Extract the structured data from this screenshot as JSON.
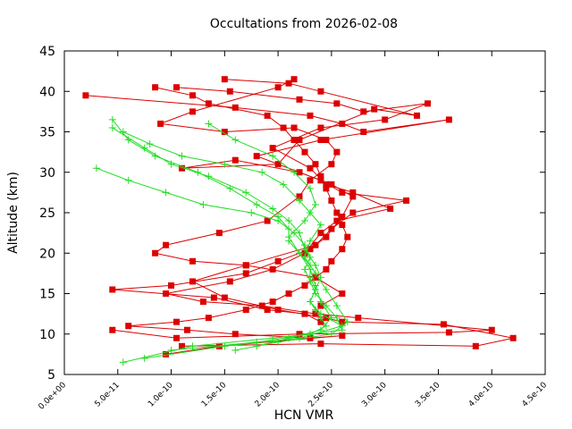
{
  "chart_data": {
    "type": "line",
    "title": "Occultations from 2026-02-08",
    "xlabel": "HCN VMR",
    "ylabel": "Altitude (km)",
    "xlim": [
      0,
      4.5e-10
    ],
    "ylim": [
      5,
      45
    ],
    "xticks": [
      0,
      5e-11,
      1e-10,
      1.5e-10,
      2e-10,
      2.5e-10,
      3e-10,
      3.5e-10,
      4e-10,
      4.5e-10
    ],
    "xtick_labels": [
      "0.0e+00",
      "5.0e-11",
      "1.0e-10",
      "1.5e-10",
      "2.0e-10",
      "2.5e-10",
      "3.0e-10",
      "3.5e-10",
      "4.0e-10",
      "4.5e-10"
    ],
    "yticks": [
      5,
      10,
      15,
      20,
      25,
      30,
      35,
      40,
      45
    ],
    "ytick_labels": [
      "5",
      "10",
      "15",
      "20",
      "25",
      "30",
      "35",
      "40",
      "45"
    ],
    "grid": false,
    "legend": "none",
    "colors": {
      "red": "#dd0000",
      "green": "#22dd22",
      "axis": "#000000"
    },
    "series": [
      {
        "name": "red-1",
        "color": "#dd0000",
        "marker": "square",
        "x": [
          8.5e-11,
          1.2e-10,
          1.35e-10,
          1.9e-10,
          2.05e-10,
          2.15e-10,
          2.25e-10,
          2.35e-10,
          2.4e-10,
          2.45e-10,
          2.5e-10,
          2.55e-10,
          2.6e-10,
          2.65e-10,
          2.6e-10,
          2.5e-10,
          2.45e-10,
          2.35e-10,
          2.25e-10,
          2.1e-10,
          1.95e-10,
          1.7e-10,
          1.35e-10,
          1.05e-10,
          6e-11,
          1.15e-10,
          1.6e-10,
          2.3e-10,
          2.6e-10,
          1.45e-10,
          9.5e-11
        ],
        "y": [
          40.5,
          39.5,
          38.5,
          37,
          35.5,
          34,
          32.5,
          31,
          29.5,
          28,
          26.5,
          25,
          23.5,
          22,
          20.5,
          19,
          18,
          17,
          16,
          15,
          14,
          13,
          12,
          11.5,
          11,
          10.5,
          10,
          9.5,
          9.8,
          8.5,
          7.5
        ]
      },
      {
        "name": "red-2",
        "color": "#dd0000",
        "marker": "square",
        "x": [
          2e-11,
          1.6e-10,
          2.3e-10,
          2.6e-10,
          2.8e-10,
          3.6e-10,
          2.4e-10,
          1.8e-10,
          2.4e-10,
          2.6e-10,
          3.2e-10,
          2.7e-10,
          2.5e-10,
          2.35e-10,
          1.7e-10,
          1.2e-10,
          1.5e-10,
          2e-10,
          2.45e-10,
          2.6e-10,
          3.55e-10,
          4.2e-10,
          3.85e-10,
          2.4e-10,
          1.1e-10
        ],
        "y": [
          39.5,
          38,
          37,
          36,
          35,
          36.5,
          34,
          32,
          29,
          27.5,
          26.5,
          25,
          23,
          21,
          18.5,
          16.5,
          14.5,
          13,
          12,
          11.5,
          11.2,
          9.5,
          8.5,
          8.8,
          8.5
        ]
      },
      {
        "name": "red-3",
        "color": "#dd0000",
        "marker": "square",
        "x": [
          1.05e-10,
          1.55e-10,
          2.2e-10,
          2.55e-10,
          2.8e-10,
          3.4e-10,
          3e-10,
          2.4e-10,
          1.95e-10,
          2.3e-10,
          2.45e-10,
          2.7e-10,
          3.05e-10,
          2.55e-10,
          2.4e-10,
          2.25e-10,
          1.95e-10,
          1.55e-10,
          9.5e-11,
          1.3e-10,
          1.85e-10,
          2.35e-10,
          2.75e-10,
          4e-10,
          3.6e-10,
          2.2e-10,
          1.05e-10,
          4.5e-11
        ],
        "y": [
          40.5,
          40,
          39,
          38.5,
          37.5,
          38.5,
          36.5,
          35.5,
          33,
          30.5,
          28.5,
          27.5,
          25.5,
          24,
          22.5,
          20,
          18,
          16.5,
          15,
          14,
          13.5,
          12.5,
          12,
          10.5,
          10.2,
          10,
          9.5,
          10.5
        ]
      },
      {
        "name": "red-4",
        "color": "#dd0000",
        "marker": "square",
        "x": [
          1.5e-10,
          2.1e-10,
          2.4e-10,
          3.3e-10,
          2.9e-10,
          2.2e-10,
          2e-10,
          1.1e-10,
          1.6e-10,
          2.2e-10,
          2.5e-10,
          2.7e-10,
          2.6e-10,
          2.45e-10,
          2.3e-10,
          2e-10,
          1.7e-10,
          1e-10,
          4.5e-11,
          1.4e-10,
          1.9e-10,
          2.25e-10,
          2.4e-10
        ],
        "y": [
          41.5,
          41,
          40,
          37,
          37.8,
          34,
          31,
          30.5,
          31.5,
          30,
          28.5,
          27,
          24.5,
          22,
          20.5,
          19,
          17.5,
          16,
          15.5,
          14.5,
          13,
          12.5,
          11.5
        ]
      },
      {
        "name": "red-5",
        "color": "#dd0000",
        "marker": "square",
        "x": [
          2.15e-10,
          2e-10,
          1.2e-10,
          9e-11,
          1.5e-10,
          2.15e-10,
          2.45e-10,
          2.55e-10,
          2.5e-10,
          2.3e-10,
          2.2e-10,
          1.9e-10,
          1.45e-10,
          9.5e-11,
          8.5e-11,
          1.2e-10,
          1.7e-10,
          2.35e-10,
          2.6e-10,
          2.4e-10
        ],
        "y": [
          41.5,
          40.5,
          37.5,
          36,
          35,
          35.5,
          34,
          32.5,
          31,
          29,
          27,
          24,
          22.5,
          21,
          20,
          19,
          18.5,
          17,
          15,
          13.5
        ]
      },
      {
        "name": "green-1",
        "color": "#22dd22",
        "marker": "plus",
        "x": [
          4.5e-11,
          6e-11,
          8.5e-11,
          1.25e-10,
          1.55e-10,
          1.8e-10,
          2e-10,
          2.1e-10,
          2.1e-10,
          2.2e-10,
          2.3e-10,
          2.3e-10,
          2.35e-10,
          2.3e-10,
          2.35e-10,
          2.4e-10,
          2.45e-10,
          2.3e-10,
          1.95e-10,
          1.2e-10,
          5.5e-11
        ],
        "y": [
          36.5,
          34,
          32,
          30,
          28,
          26,
          24.5,
          23,
          21.5,
          20,
          18.5,
          17,
          15.5,
          14,
          13,
          12,
          11,
          10,
          9.5,
          8.5,
          6.5
        ]
      },
      {
        "name": "green-2",
        "color": "#22dd22",
        "marker": "plus",
        "x": [
          4.5e-11,
          7.5e-11,
          1e-10,
          1.35e-10,
          1.7e-10,
          1.95e-10,
          2.1e-10,
          2.2e-10,
          2.25e-10,
          2.35e-10,
          2.4e-10,
          2.35e-10,
          2.3e-10,
          2.4e-10,
          2.6e-10,
          2.2e-10,
          1.5e-10,
          7.5e-11
        ],
        "y": [
          35.5,
          33,
          31,
          29.5,
          27.5,
          25.5,
          24,
          22.5,
          20.5,
          18.5,
          17,
          15.5,
          14,
          12.5,
          11,
          9.5,
          8.5,
          7
        ]
      },
      {
        "name": "green-3",
        "color": "#22dd22",
        "marker": "plus",
        "x": [
          3e-11,
          6e-11,
          9.5e-11,
          1.3e-10,
          1.75e-10,
          2e-10,
          2.15e-10,
          2.25e-10,
          2.3e-10,
          2.25e-10,
          2.3e-10,
          2.35e-10,
          2.45e-10,
          2.55e-10,
          2.6e-10,
          2.3e-10,
          1.8e-10,
          1e-10
        ],
        "y": [
          30.5,
          29,
          27.5,
          26,
          25,
          24,
          22.5,
          21,
          19.5,
          18,
          16.5,
          15,
          13.5,
          12,
          10.5,
          10,
          9,
          8
        ]
      },
      {
        "name": "green-4",
        "color": "#22dd22",
        "marker": "plus",
        "x": [
          5.5e-11,
          8e-11,
          1.1e-10,
          1.5e-10,
          1.85e-10,
          2.05e-10,
          2.2e-10,
          2.3e-10,
          2.4e-10,
          2.3e-10,
          2.25e-10,
          2.35e-10,
          2.45e-10,
          2.55e-10,
          2.65e-10,
          2.5e-10,
          2e-10,
          1.6e-10
        ],
        "y": [
          35,
          33.5,
          32,
          31,
          30,
          28.5,
          26.5,
          25,
          23.5,
          21.5,
          19.5,
          17.5,
          15.5,
          13.5,
          11.5,
          10,
          9,
          8
        ]
      },
      {
        "name": "green-5",
        "color": "#22dd22",
        "marker": "plus",
        "x": [
          1.35e-10,
          1.6e-10,
          1.95e-10,
          2.15e-10,
          2.3e-10,
          2.35e-10,
          2.25e-10,
          2.1e-10,
          2.2e-10,
          2.3e-10,
          2.35e-10,
          2.4e-10,
          2.5e-10,
          2.4e-10,
          2.1e-10,
          1.8e-10
        ],
        "y": [
          36,
          34,
          32,
          30,
          28,
          26,
          24,
          22,
          20,
          18,
          16,
          14,
          12,
          10.5,
          9.5,
          8.5
        ]
      }
    ]
  }
}
